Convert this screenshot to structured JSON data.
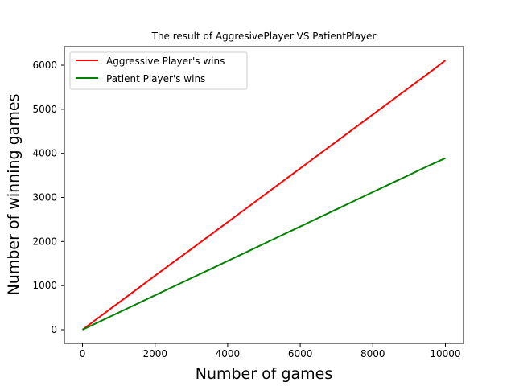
{
  "chart_data": {
    "type": "line",
    "title": "The result of AggresivePlayer VS PatientPlayer",
    "xlabel": "Number of games",
    "ylabel": "Number of winning games",
    "xlim": [
      -500,
      10500
    ],
    "ylim": [
      -310,
      6420
    ],
    "xticks": [
      0,
      2000,
      4000,
      6000,
      8000,
      10000
    ],
    "yticks": [
      0,
      1000,
      2000,
      3000,
      4000,
      5000,
      6000
    ],
    "grid": false,
    "legend_position": "upper-left",
    "series": [
      {
        "name": "Aggressive Player's wins",
        "color": "#ff0000",
        "x": [
          0,
          500,
          1000,
          1500,
          2000,
          2500,
          3000,
          3500,
          4000,
          4500,
          5000,
          5500,
          6000,
          6500,
          7000,
          7500,
          8000,
          8500,
          9000,
          9500,
          10000
        ],
        "y": [
          0,
          310,
          615,
          920,
          1225,
          1530,
          1830,
          2135,
          2440,
          2745,
          3050,
          3355,
          3660,
          3965,
          4270,
          4575,
          4880,
          5185,
          5490,
          5795,
          6110
        ]
      },
      {
        "name": "Patient Player's wins",
        "color": "#008000",
        "x": [
          0,
          500,
          1000,
          1500,
          2000,
          2500,
          3000,
          3500,
          4000,
          4500,
          5000,
          5500,
          6000,
          6500,
          7000,
          7500,
          8000,
          8500,
          9000,
          9500,
          10000
        ],
        "y": [
          0,
          195,
          390,
          585,
          780,
          975,
          1170,
          1365,
          1560,
          1755,
          1950,
          2145,
          2340,
          2535,
          2730,
          2925,
          3120,
          3315,
          3510,
          3705,
          3890
        ]
      }
    ]
  }
}
